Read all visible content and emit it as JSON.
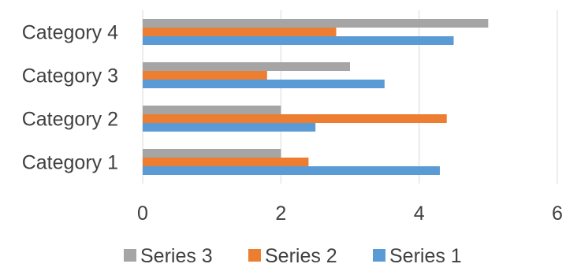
{
  "chart_data": {
    "type": "bar",
    "orientation": "horizontal",
    "categories": [
      "Category 1",
      "Category 2",
      "Category 3",
      "Category 4"
    ],
    "series": [
      {
        "name": "Series 1",
        "values": [
          4.3,
          2.5,
          3.5,
          4.5
        ],
        "color": "#5b9bd5"
      },
      {
        "name": "Series 2",
        "values": [
          2.4,
          4.4,
          1.8,
          2.8
        ],
        "color": "#ed7d31"
      },
      {
        "name": "Series 3",
        "values": [
          2,
          2,
          3,
          5
        ],
        "color": "#a5a5a5"
      }
    ],
    "x_ticks": [
      "0",
      "2",
      "4",
      "6"
    ],
    "xlim": [
      0,
      6
    ],
    "grid": "vertical",
    "legend": {
      "position": "bottom",
      "order": [
        "Series 3",
        "Series 2",
        "Series 1"
      ]
    }
  }
}
